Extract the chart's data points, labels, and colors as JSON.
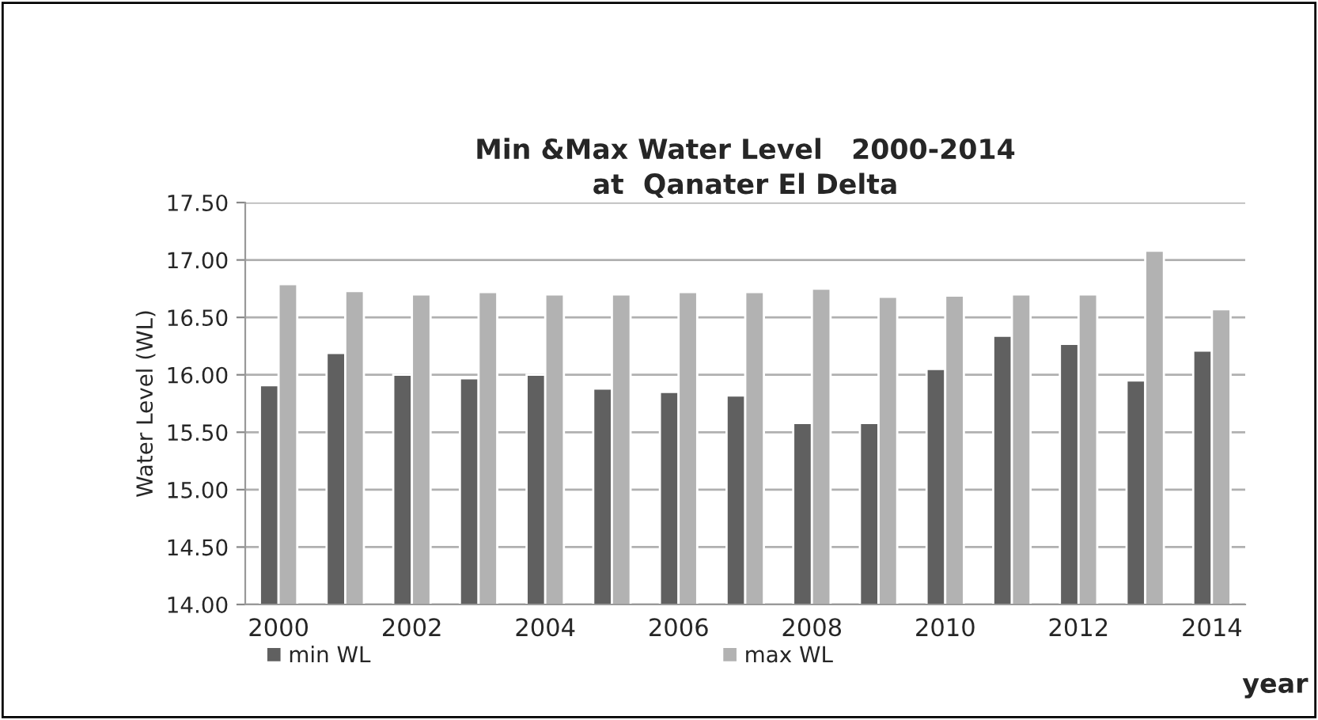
{
  "chart_data": {
    "type": "bar",
    "title": "Min &Max Water Level   2000-2014\nat  Qanater El Delta",
    "xlabel": "year",
    "ylabel": "Water Level (WL)",
    "categories": [
      "2000",
      null,
      "2002",
      null,
      "2004",
      null,
      "2006",
      null,
      "2008",
      null,
      "2010",
      null,
      "2012",
      null,
      "2014"
    ],
    "series": [
      {
        "name": "min WL",
        "color": "#606060",
        "values": [
          15.91,
          16.19,
          16.0,
          15.97,
          16.0,
          15.88,
          15.85,
          15.82,
          15.58,
          15.58,
          16.05,
          16.34,
          16.27,
          15.95,
          16.21
        ]
      },
      {
        "name": "max WL",
        "color": "#b2b2b2",
        "values": [
          16.79,
          16.73,
          16.7,
          16.72,
          16.7,
          16.7,
          16.72,
          16.72,
          16.75,
          16.68,
          16.69,
          16.7,
          16.7,
          17.08,
          16.57
        ]
      }
    ],
    "ylim": [
      14.0,
      17.5
    ],
    "yticks": [
      {
        "value": 14.0,
        "label": "14.00"
      },
      {
        "value": 14.5,
        "label": "14.50"
      },
      {
        "value": 15.0,
        "label": "15.00"
      },
      {
        "value": 15.5,
        "label": "15.50"
      },
      {
        "value": 16.0,
        "label": "16.00"
      },
      {
        "value": 16.5,
        "label": "16.50"
      },
      {
        "value": 17.0,
        "label": "17.00"
      },
      {
        "value": 17.5,
        "label": "17.50"
      }
    ],
    "grid": "y",
    "legend": "bottom left"
  }
}
